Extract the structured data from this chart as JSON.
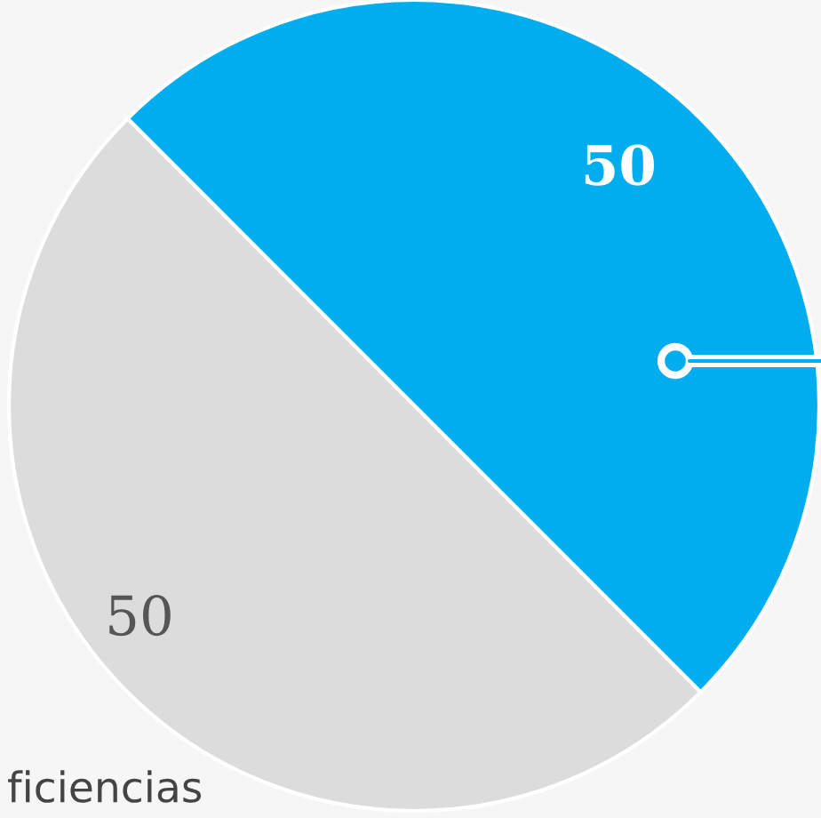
{
  "chart_data": {
    "type": "pie",
    "categories": [
      null,
      null
    ],
    "values": [
      50,
      50
    ],
    "colors": [
      "#00adef",
      "#dcdcdc"
    ],
    "data_labels": true,
    "annotations": [
      "ficiencias"
    ]
  }
}
